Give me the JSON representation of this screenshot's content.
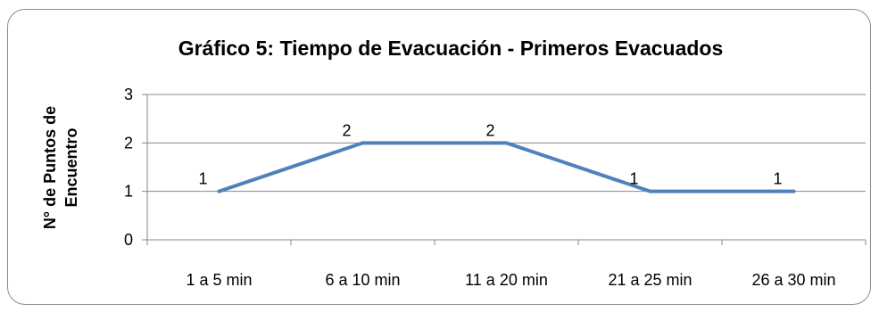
{
  "chart_data": {
    "type": "line",
    "title": "Gráfico 5: Tiempo de Evacuación - Primeros Evacuados",
    "xlabel": "",
    "ylabel": [
      "N° de Puntos de",
      "Encuentro"
    ],
    "categories": [
      "1 a 5 min",
      "6 a 10 min",
      "11 a 20 min",
      "21 a 25 min",
      "26 a 30 min"
    ],
    "series": [
      {
        "values": [
          1,
          2,
          2,
          1,
          1
        ],
        "color": "#4f81bd"
      }
    ],
    "data_labels": [
      "1",
      "2",
      "2",
      "1",
      "1"
    ],
    "ylim": [
      0,
      3
    ],
    "yticks": [
      "0",
      "1",
      "2",
      "3"
    ],
    "grid": true,
    "legend": "none"
  }
}
